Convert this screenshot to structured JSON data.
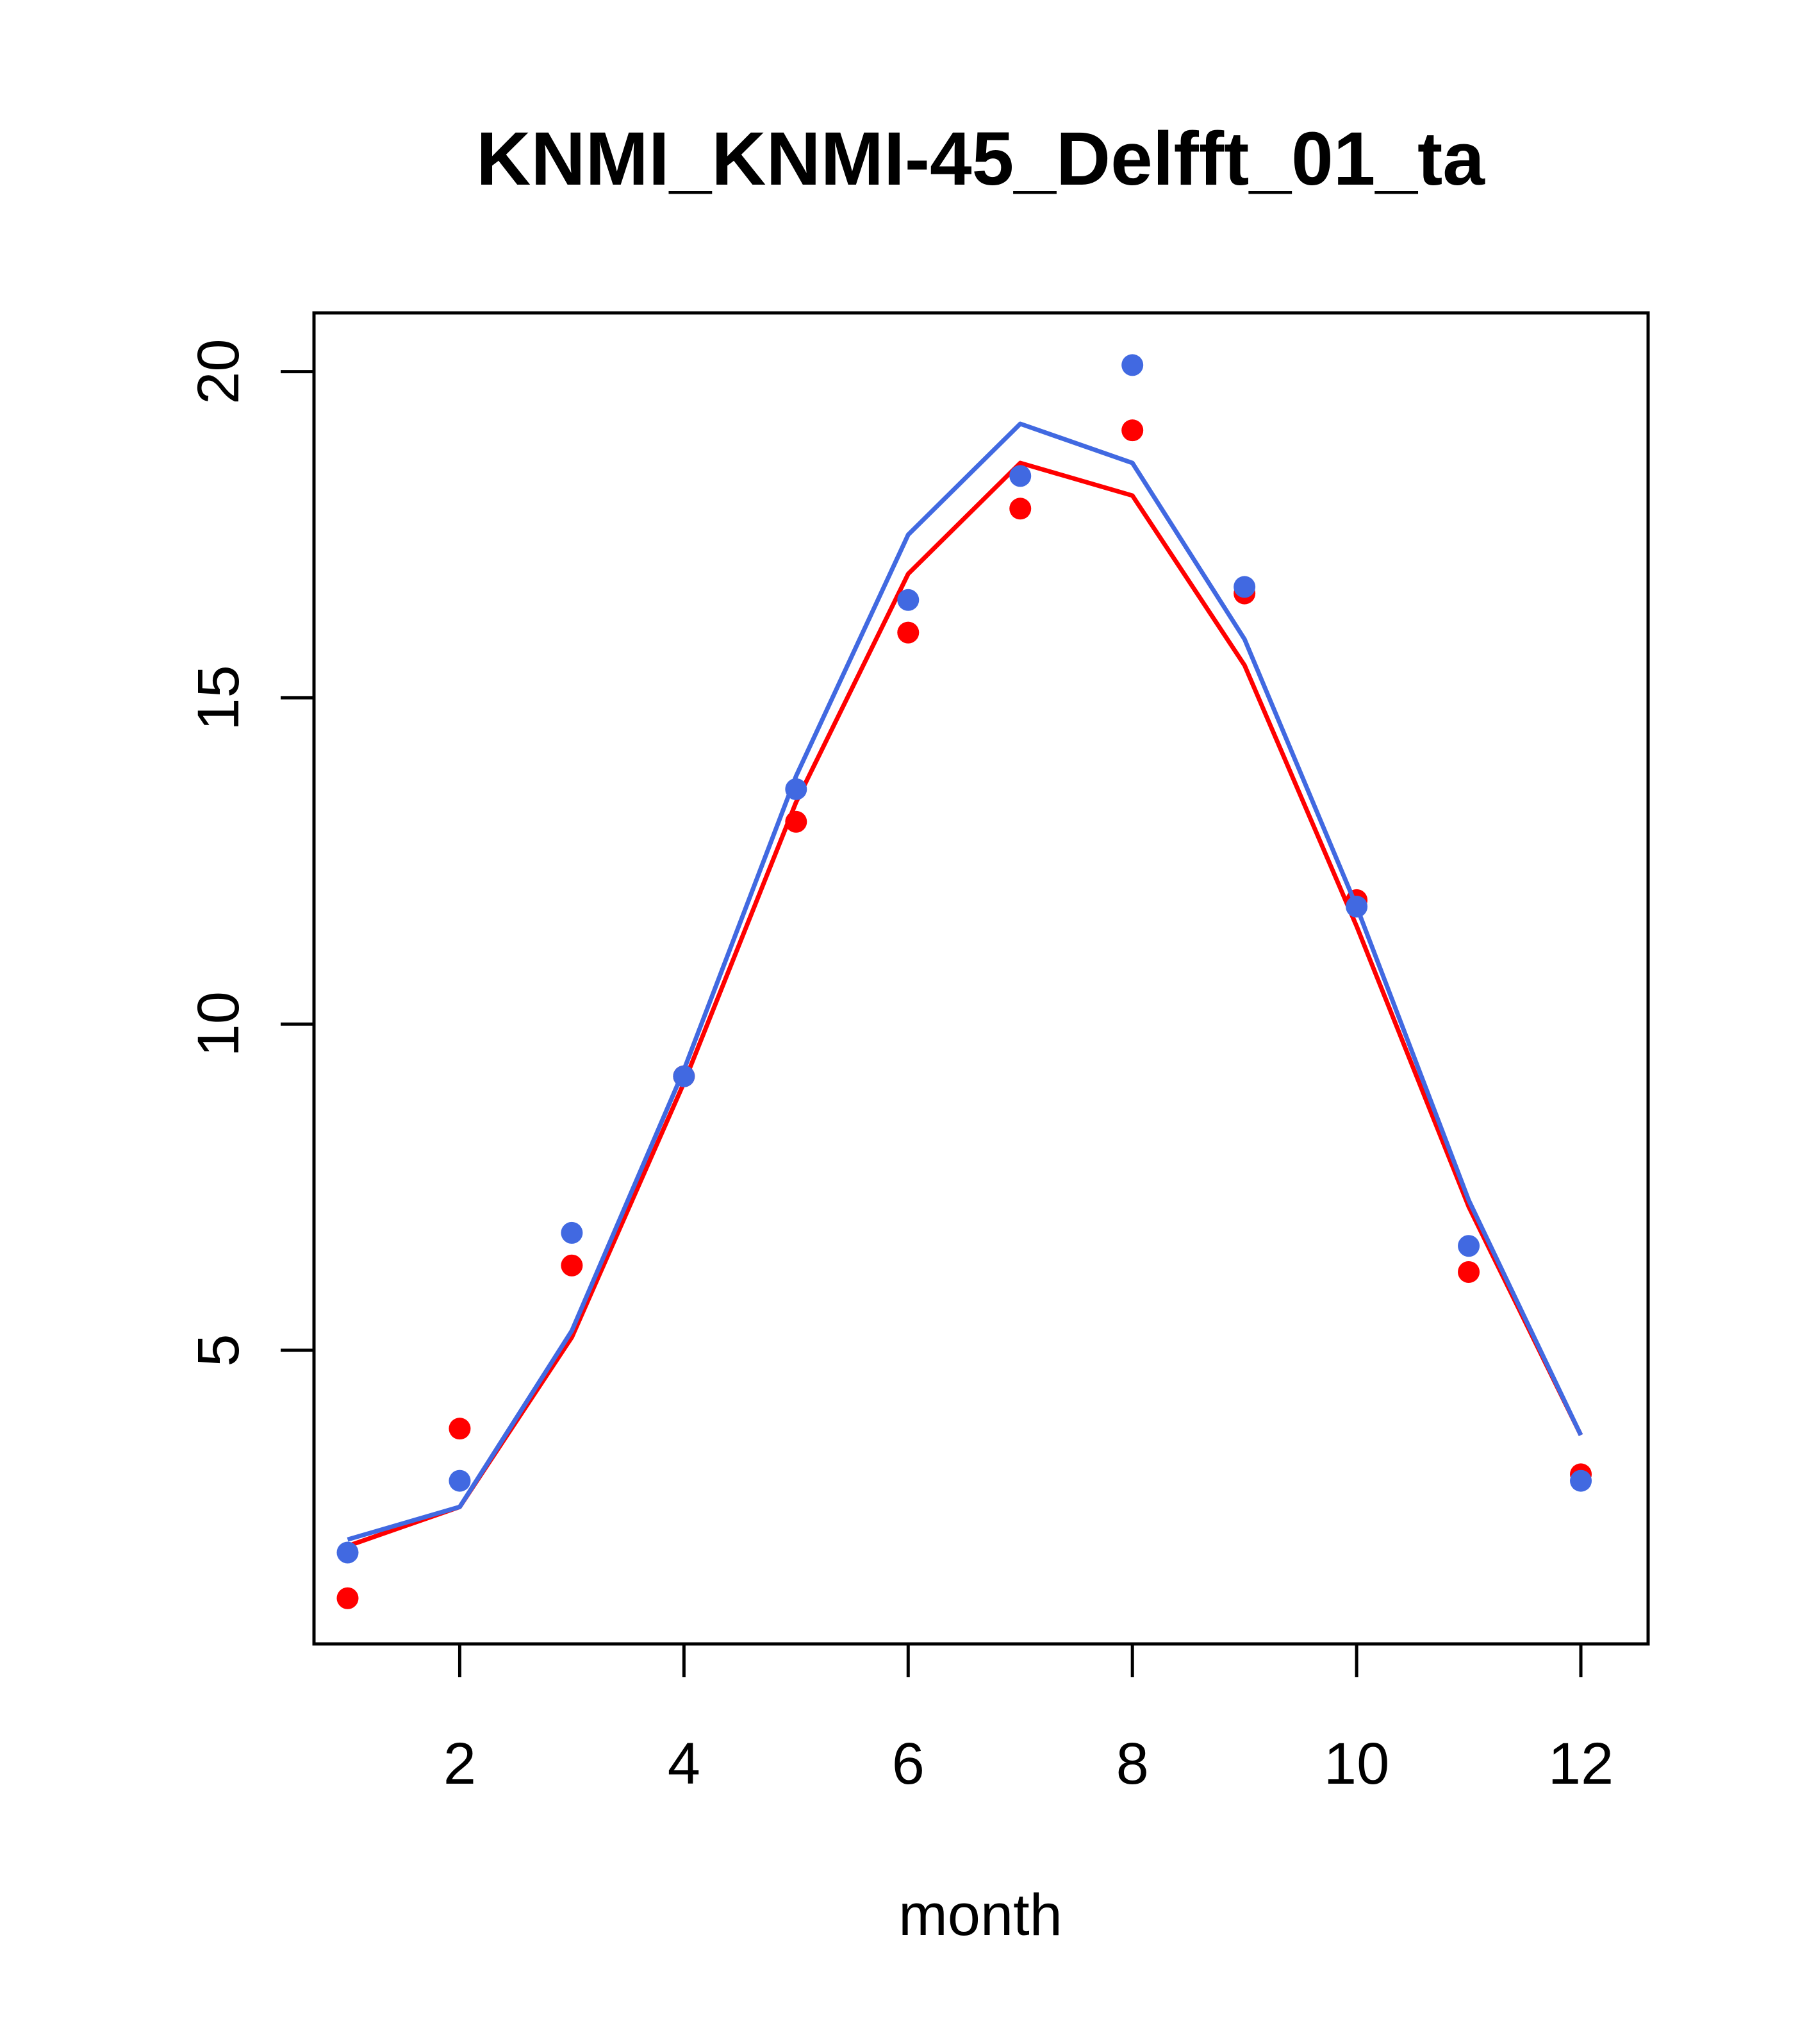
{
  "chart_data": {
    "type": "line",
    "title": "KNMI_KNMI-45_Delfft_01_ta",
    "xlabel": "month",
    "ylabel": "",
    "xlim": [
      0.7,
      12.6
    ],
    "ylim": [
      0.5,
      20.9
    ],
    "xticks": [
      2,
      4,
      6,
      8,
      10,
      12
    ],
    "yticks": [
      5,
      10,
      15,
      20
    ],
    "grid": false,
    "legend": "none",
    "x": [
      1,
      2,
      3,
      4,
      5,
      6,
      7,
      8,
      9,
      10,
      11,
      12
    ],
    "series": [
      {
        "color": "#ff0000",
        "line": [
          2.0,
          2.6,
          5.2,
          9.1,
          13.4,
          16.9,
          18.6,
          18.1,
          15.5,
          11.5,
          7.2,
          3.7
        ],
        "points": [
          1.2,
          3.8,
          6.3,
          9.2,
          13.1,
          16.0,
          17.9,
          19.1,
          16.6,
          11.9,
          6.2,
          3.1
        ]
      },
      {
        "color": "#4169e1",
        "line": [
          2.1,
          2.6,
          5.3,
          9.3,
          13.8,
          17.5,
          19.2,
          18.6,
          15.9,
          11.8,
          7.3,
          3.7
        ],
        "points": [
          1.9,
          3.0,
          6.8,
          9.2,
          13.6,
          16.5,
          18.4,
          20.1,
          16.7,
          11.8,
          6.6,
          3.0
        ]
      }
    ]
  }
}
